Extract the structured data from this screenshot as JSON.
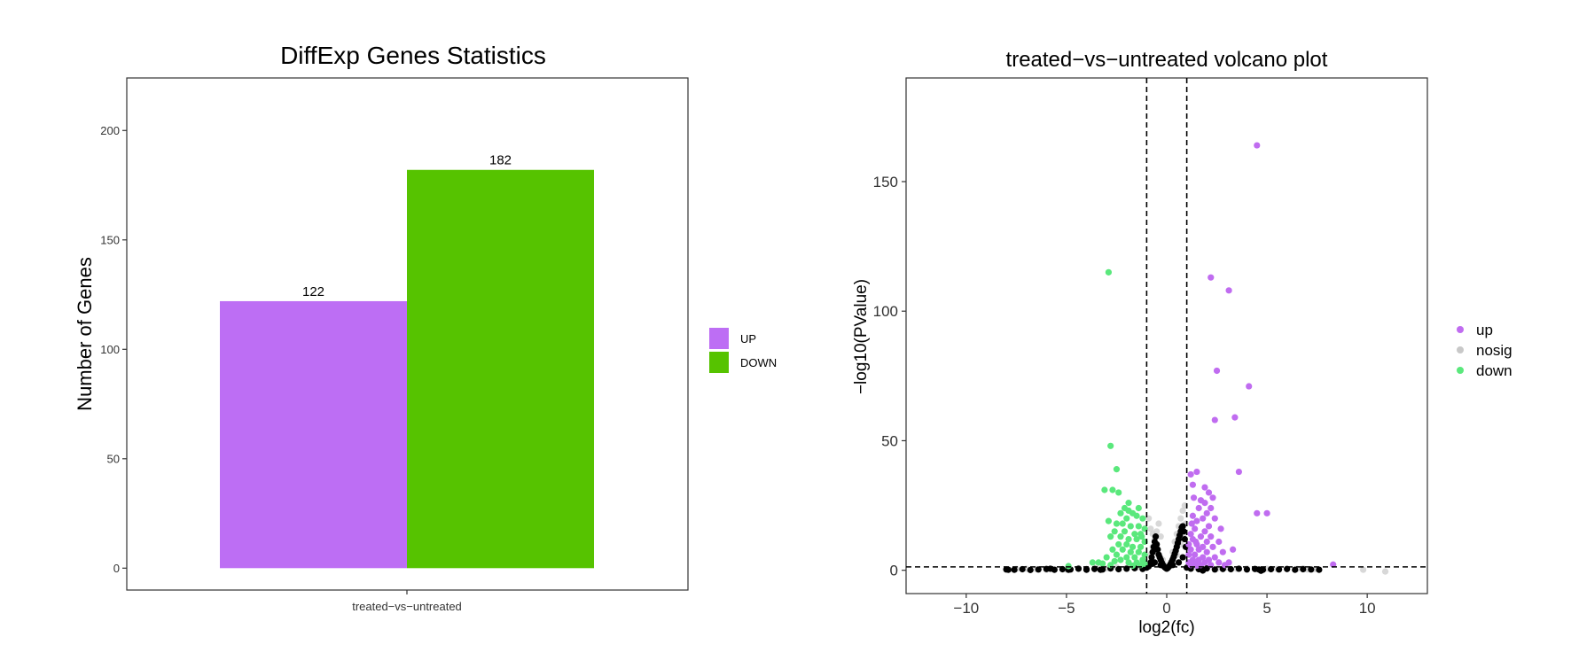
{
  "chart_data": [
    {
      "type": "bar",
      "title": "DiffExp Genes Statistics",
      "xlabel": "",
      "ylabel": "Number of Genes",
      "categories": [
        "treated-vs-untreated"
      ],
      "category_label": "treated−vs−untreated",
      "series": [
        {
          "name": "UP",
          "values": [
            122
          ],
          "color": "#bd6ef4"
        },
        {
          "name": "DOWN",
          "values": [
            182
          ],
          "color": "#56c300"
        }
      ],
      "data_labels": [
        "122",
        "182"
      ],
      "ylim": [
        -10,
        224
      ],
      "yticks": [
        0,
        50,
        100,
        150,
        200
      ],
      "grid": false,
      "legend_position": "right"
    },
    {
      "type": "scatter",
      "title": "treated−vs−untreated volcano plot",
      "xlabel": "log2(fc)",
      "ylabel": "−log10(PValue)",
      "xlim": [
        -13,
        13
      ],
      "ylim": [
        -9,
        190
      ],
      "xticks": [
        -10,
        -5,
        0,
        5,
        10
      ],
      "xtick_labels": [
        "−10",
        "−5",
        "0",
        "5",
        "10"
      ],
      "yticks": [
        0,
        50,
        100,
        150
      ],
      "thresholds": {
        "log2fc": [
          -1,
          1
        ],
        "neg_log10_p": 1.3
      },
      "grid": false,
      "legend_position": "right",
      "series": [
        {
          "name": "up",
          "color": "#c06cf0",
          "points": [
            [
              4.5,
              164
            ],
            [
              2.2,
              113
            ],
            [
              3.1,
              108
            ],
            [
              2.5,
              77
            ],
            [
              4.1,
              71
            ],
            [
              3.4,
              59
            ],
            [
              2.4,
              58
            ],
            [
              3.6,
              38
            ],
            [
              4.5,
              22
            ],
            [
              5.0,
              22
            ],
            [
              1.2,
              37
            ],
            [
              1.5,
              38
            ],
            [
              1.9,
              32
            ],
            [
              2.1,
              30
            ],
            [
              2.3,
              28
            ],
            [
              1.3,
              33
            ],
            [
              1.7,
              27
            ],
            [
              1.9,
              26
            ],
            [
              2.2,
              24
            ],
            [
              1.6,
              24
            ],
            [
              2.0,
              22
            ],
            [
              1.8,
              20
            ],
            [
              2.4,
              20
            ],
            [
              1.3,
              21
            ],
            [
              1.5,
              19
            ],
            [
              2.1,
              17
            ],
            [
              2.7,
              16
            ],
            [
              1.4,
              16
            ],
            [
              1.9,
              15
            ],
            [
              1.2,
              14
            ],
            [
              2.2,
              13
            ],
            [
              1.7,
              13
            ],
            [
              1.3,
              12
            ],
            [
              2.0,
              11
            ],
            [
              2.6,
              11
            ],
            [
              1.5,
              10
            ],
            [
              1.1,
              10
            ],
            [
              1.8,
              9
            ],
            [
              2.3,
              9
            ],
            [
              1.2,
              8
            ],
            [
              1.6,
              8
            ],
            [
              2.0,
              7
            ],
            [
              2.8,
              7
            ],
            [
              1.4,
              6
            ],
            [
              1.1,
              6
            ],
            [
              1.8,
              5
            ],
            [
              2.4,
              5
            ],
            [
              1.3,
              4
            ],
            [
              1.6,
              4
            ],
            [
              2.1,
              4
            ],
            [
              1.1,
              3
            ],
            [
              1.9,
              3
            ],
            [
              2.6,
              3
            ],
            [
              1.4,
              2.5
            ],
            [
              3.1,
              3
            ],
            [
              1.2,
              2
            ],
            [
              1.7,
              2
            ],
            [
              2.2,
              2
            ],
            [
              1.5,
              1.8
            ],
            [
              2.9,
              2
            ],
            [
              8.3,
              2.2
            ],
            [
              1.35,
              28
            ],
            [
              1.25,
              18
            ],
            [
              1.45,
              11
            ],
            [
              3.3,
              8
            ]
          ]
        },
        {
          "name": "nosig",
          "color": "#c8c8c8",
          "points": [
            [
              -7.5,
              0.5
            ],
            [
              -6.5,
              0.4
            ],
            [
              -5.8,
              0.6
            ],
            [
              -5.0,
              0.3
            ],
            [
              -4.4,
              0.8
            ],
            [
              -4.0,
              0.5
            ],
            [
              -3.5,
              1.0
            ],
            [
              -3.0,
              0.7
            ],
            [
              -2.5,
              1.2
            ],
            [
              -2.0,
              0.9
            ],
            [
              -1.5,
              1.1
            ],
            [
              -1.1,
              1.3
            ],
            [
              -0.9,
              3
            ],
            [
              -0.8,
              6
            ],
            [
              -0.7,
              9
            ],
            [
              -0.6,
              12
            ],
            [
              -0.5,
              15
            ],
            [
              -0.4,
              18
            ],
            [
              -0.3,
              13
            ],
            [
              -0.8,
              16
            ],
            [
              -0.9,
              20
            ],
            [
              -0.6,
              8
            ],
            [
              -0.7,
              14
            ],
            [
              0.3,
              7
            ],
            [
              0.4,
              11
            ],
            [
              0.5,
              14
            ],
            [
              0.6,
              17
            ],
            [
              0.7,
              20
            ],
            [
              0.8,
              23
            ],
            [
              0.9,
              25
            ],
            [
              0.5,
              6
            ],
            [
              0.7,
              10
            ],
            [
              0.85,
              14
            ],
            [
              0.95,
              18
            ],
            [
              1.5,
              1.0
            ],
            [
              2.0,
              0.8
            ],
            [
              2.5,
              0.6
            ],
            [
              3.0,
              1.0
            ],
            [
              3.5,
              0.5
            ],
            [
              4.0,
              0.7
            ],
            [
              4.5,
              0.4
            ],
            [
              5.0,
              0.6
            ],
            [
              5.5,
              0.5
            ],
            [
              6.0,
              0.4
            ],
            [
              6.5,
              0.5
            ],
            [
              7.0,
              0.3
            ],
            [
              7.4,
              0.4
            ],
            [
              9.8,
              0.2
            ],
            [
              10.9,
              -0.5
            ],
            [
              -6.0,
              0.2
            ],
            [
              -7.0,
              0.6
            ],
            [
              6.8,
              0.7
            ],
            [
              0.2,
              3
            ],
            [
              -0.2,
              4
            ],
            [
              0.1,
              1.5
            ],
            [
              -0.1,
              2
            ],
            [
              0.0,
              0.8
            ]
          ]
        },
        {
          "name": "down",
          "color": "#5ae87c",
          "points": [
            [
              -2.9,
              115
            ],
            [
              -2.8,
              48
            ],
            [
              -2.5,
              39
            ],
            [
              -3.1,
              31
            ],
            [
              -2.7,
              31
            ],
            [
              -2.4,
              30
            ],
            [
              -2.3,
              22
            ],
            [
              -2.1,
              24
            ],
            [
              -1.9,
              23
            ],
            [
              -1.7,
              22
            ],
            [
              -2.0,
              20
            ],
            [
              -1.5,
              21
            ],
            [
              -1.2,
              20
            ],
            [
              -2.9,
              19
            ],
            [
              -2.5,
              18
            ],
            [
              -2.2,
              18
            ],
            [
              -1.8,
              17
            ],
            [
              -1.4,
              17
            ],
            [
              -1.1,
              16
            ],
            [
              -2.6,
              15
            ],
            [
              -2.1,
              15
            ],
            [
              -1.6,
              14
            ],
            [
              -1.3,
              14
            ],
            [
              -2.8,
              13
            ],
            [
              -2.3,
              13
            ],
            [
              -1.9,
              12
            ],
            [
              -1.5,
              12
            ],
            [
              -1.1,
              11
            ],
            [
              -2.4,
              10
            ],
            [
              -2.0,
              10
            ],
            [
              -1.7,
              9
            ],
            [
              -1.3,
              9
            ],
            [
              -2.7,
              8
            ],
            [
              -2.2,
              8
            ],
            [
              -1.8,
              7
            ],
            [
              -1.4,
              7
            ],
            [
              -1.1,
              6
            ],
            [
              -2.5,
              6
            ],
            [
              -2.0,
              5
            ],
            [
              -1.6,
              5
            ],
            [
              -1.2,
              4
            ],
            [
              -3.0,
              5
            ],
            [
              -2.3,
              4
            ],
            [
              -1.9,
              3
            ],
            [
              -1.5,
              3
            ],
            [
              -1.1,
              2.5
            ],
            [
              -3.7,
              3
            ],
            [
              -3.4,
              3
            ],
            [
              -2.8,
              2
            ],
            [
              -1.3,
              2
            ],
            [
              -1.7,
              1.8
            ],
            [
              -4.9,
              1.6
            ],
            [
              -3.2,
              2.6
            ],
            [
              -2.6,
              3.5
            ],
            [
              -1.4,
              24
            ],
            [
              -1.25,
              13
            ],
            [
              -1.9,
              26
            ]
          ]
        },
        {
          "name": "",
          "color": "#000000",
          "points": [
            [
              -8.0,
              0.3
            ],
            [
              -7.6,
              0.2
            ],
            [
              -7.2,
              0.4
            ],
            [
              -6.8,
              0.1
            ],
            [
              -6.4,
              0.3
            ],
            [
              -6.0,
              0.5
            ],
            [
              -5.6,
              0.2
            ],
            [
              -5.2,
              0.4
            ],
            [
              -4.8,
              0.3
            ],
            [
              -4.4,
              0.6
            ],
            [
              -4.0,
              0.2
            ],
            [
              -3.6,
              0.5
            ],
            [
              -3.2,
              0.3
            ],
            [
              -2.8,
              0.7
            ],
            [
              -2.4,
              0.4
            ],
            [
              -2.0,
              0.6
            ],
            [
              -1.6,
              0.8
            ],
            [
              -1.2,
              0.5
            ],
            [
              -0.9,
              1.5
            ],
            [
              -0.8,
              3
            ],
            [
              -0.75,
              5
            ],
            [
              -0.7,
              7
            ],
            [
              -0.65,
              9
            ],
            [
              -0.6,
              11
            ],
            [
              -0.55,
              13
            ],
            [
              -0.5,
              10
            ],
            [
              -0.45,
              8
            ],
            [
              -0.4,
              6
            ],
            [
              -0.35,
              5
            ],
            [
              -0.3,
              4
            ],
            [
              -0.25,
              3
            ],
            [
              -0.2,
              2.2
            ],
            [
              -0.15,
              1.6
            ],
            [
              -0.1,
              1.2
            ],
            [
              -0.05,
              0.9
            ],
            [
              0.0,
              0.6
            ],
            [
              0.05,
              0.9
            ],
            [
              0.1,
              1.3
            ],
            [
              0.15,
              1.8
            ],
            [
              0.2,
              2.5
            ],
            [
              0.25,
              3.3
            ],
            [
              0.3,
              4.2
            ],
            [
              0.35,
              5.2
            ],
            [
              0.4,
              6.4
            ],
            [
              0.45,
              7.6
            ],
            [
              0.5,
              9
            ],
            [
              0.55,
              10.5
            ],
            [
              0.6,
              12
            ],
            [
              0.65,
              13.5
            ],
            [
              0.7,
              15
            ],
            [
              0.75,
              16.5
            ],
            [
              0.8,
              17
            ],
            [
              0.85,
              15
            ],
            [
              0.9,
              12
            ],
            [
              0.95,
              9
            ],
            [
              -0.85,
              2.2
            ],
            [
              -0.95,
              1.4
            ],
            [
              1.2,
              0.6
            ],
            [
              1.6,
              0.4
            ],
            [
              2.0,
              0.7
            ],
            [
              2.4,
              0.3
            ],
            [
              2.8,
              0.5
            ],
            [
              3.2,
              0.4
            ],
            [
              3.6,
              0.6
            ],
            [
              4.0,
              0.3
            ],
            [
              4.4,
              0.5
            ],
            [
              4.8,
              0.2
            ],
            [
              5.2,
              0.4
            ],
            [
              5.6,
              0.3
            ],
            [
              6.0,
              0.5
            ],
            [
              6.4,
              0.2
            ],
            [
              6.8,
              0.4
            ],
            [
              7.2,
              0.3
            ],
            [
              7.6,
              0.2
            ],
            [
              -1.0,
              1.0
            ],
            [
              1.0,
              1.0
            ],
            [
              0.3,
              2
            ],
            [
              -0.3,
              2
            ],
            [
              0.6,
              3
            ],
            [
              -0.6,
              3
            ],
            [
              0.8,
              5
            ],
            [
              -0.7,
              2.5
            ],
            [
              -4.0,
              0.4
            ],
            [
              4.6,
              0.3
            ],
            [
              -5.8,
              0.6
            ],
            [
              -7.9,
              0.2
            ],
            [
              -4.9,
              0.2
            ],
            [
              -3.3,
              0.2
            ],
            [
              4.7,
              -0.2
            ],
            [
              1.8,
              -0.1
            ]
          ]
        }
      ]
    }
  ]
}
